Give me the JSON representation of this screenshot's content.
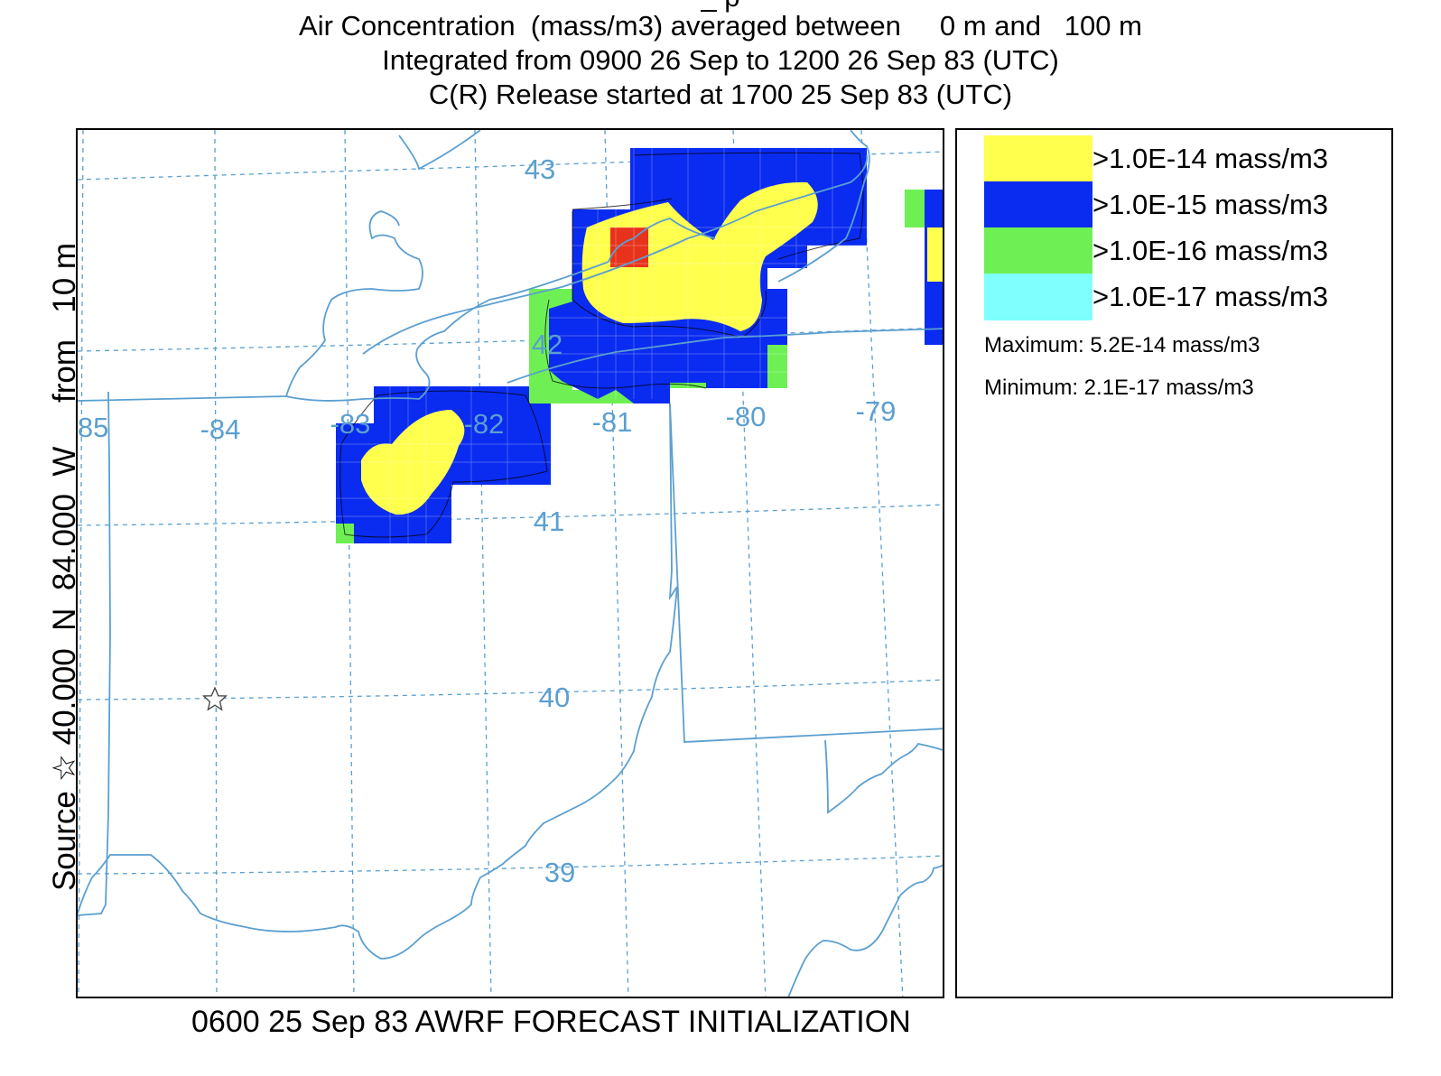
{
  "title": {
    "line0": "_ p",
    "line1": "Air Concentration  (mass/m3) averaged between     0 m and   100 m",
    "line2": "Integrated from 0900 26 Sep to 1200 26 Sep 83 (UTC)",
    "line3": "C(R) Release started at 1700 25 Sep 83 (UTC)"
  },
  "side_label": "Source ☆ 40.000  N  84.000  W     from   10 m",
  "footer": "0600 25 Sep 83 AWRF FORECAST INITIALIZATION",
  "map": {
    "longitude_labels": [
      "-85",
      "-84",
      "-83",
      "-82",
      "-81",
      "-80",
      "-79"
    ],
    "latitude_labels": [
      "43",
      "42",
      "41",
      "40",
      "39"
    ],
    "source_marker": "star-icon",
    "source_location": {
      "lat": 40.0,
      "lon": -84.0
    },
    "colors": {
      "boundary": "#5b9fd0",
      "grid": "#5b9fd0",
      "peak": "#e8331c"
    }
  },
  "legend": {
    "entries": [
      {
        "label": ">1.0E-14 mass/m3",
        "color": "#ffff4d"
      },
      {
        "label": ">1.0E-15 mass/m3",
        "color": "#0a2bf0"
      },
      {
        "label": ">1.0E-16 mass/m3",
        "color": "#6ef054"
      },
      {
        "label": ">1.0E-17 mass/m3",
        "color": "#80ffff"
      }
    ],
    "maximum": "Maximum: 5.2E-14 mass/m3",
    "minimum": "Minimum: 2.1E-17 mass/m3"
  }
}
